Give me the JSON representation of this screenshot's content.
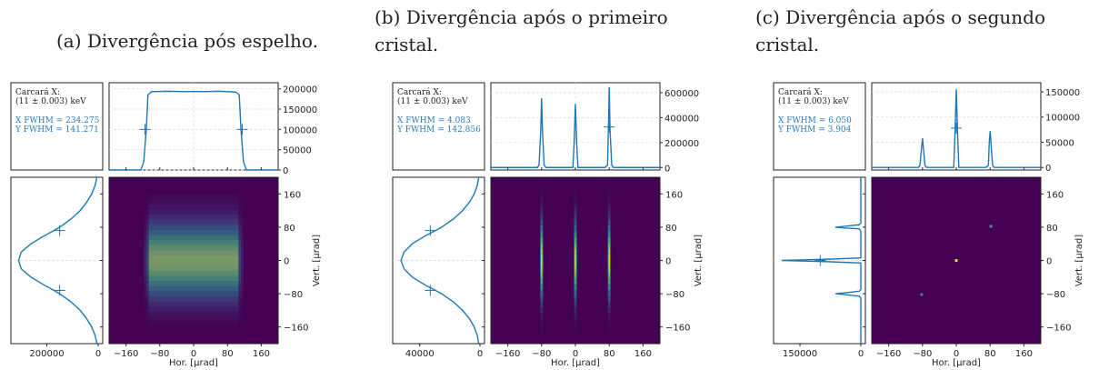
{
  "chart_data": [
    {
      "type": "heatmap",
      "caption": "(a) Divergência pós espelho.",
      "info": {
        "source": "Carcará X:",
        "energy": "(11 ± 0.003) keV",
        "xfwhm": "X FWHM = 234.275",
        "yfwhm": "Y FWHM = 141.271"
      },
      "xlabel": "Hor. [µrad]",
      "ylabel": "Vert. [µrad]",
      "xlim": [
        -200,
        200
      ],
      "ylim": [
        -200,
        200
      ],
      "xticks": [
        "−160",
        "−80",
        "0",
        "80",
        "160"
      ],
      "yticks": [
        "−160",
        "−80",
        "0",
        "80",
        "160"
      ],
      "top_hist": {
        "ylim": [
          0,
          215000
        ],
        "yticks": [
          "0",
          "50000",
          "100000",
          "150000",
          "200000"
        ],
        "x": [
          -200,
          -125,
          -118,
          -112,
          -108,
          -100,
          -60,
          -20,
          0,
          20,
          60,
          100,
          108,
          112,
          118,
          125,
          200
        ],
        "y": [
          0,
          0,
          20000,
          100000,
          185000,
          193000,
          194000,
          193000,
          193500,
          193000,
          194000,
          192000,
          185000,
          100000,
          20000,
          0,
          0
        ]
      },
      "left_hist": {
        "xlim": [
          0,
          340000
        ],
        "xticks": [
          "200000",
          "0"
        ],
        "y": [
          -200,
          -180,
          -160,
          -140,
          -120,
          -100,
          -80,
          -70,
          -60,
          -40,
          -20,
          0,
          20,
          40,
          60,
          70,
          80,
          100,
          120,
          140,
          160,
          180,
          200
        ],
        "x": [
          5000,
          12000,
          25000,
          45000,
          70000,
          105000,
          150000,
          178000,
          208000,
          262000,
          300000,
          310000,
          300000,
          262000,
          208000,
          178000,
          150000,
          105000,
          70000,
          45000,
          25000,
          12000,
          5000
        ]
      },
      "spots": [
        {
          "x": 0,
          "y": 0,
          "sx": 110,
          "sy": 58,
          "shape": "box"
        }
      ],
      "markers": {
        "top": [
          [
            -115,
            100000
          ],
          [
            115,
            100000
          ]
        ],
        "left": [
          [
            150000,
            72
          ],
          [
            150000,
            -72
          ]
        ]
      }
    },
    {
      "type": "heatmap",
      "caption": "(b) Divergência após o primeiro cristal.",
      "info": {
        "source": "Carcará X:",
        "energy": "(11 ± 0.003) keV",
        "xfwhm": "X FWHM = 4.083",
        "yfwhm": "Y FWHM = 142.856"
      },
      "xlabel": "Hor. [µrad]",
      "ylabel": "Vert. [µrad]",
      "xlim": [
        -200,
        200
      ],
      "ylim": [
        -200,
        200
      ],
      "xticks": [
        "−160",
        "−80",
        "0",
        "80",
        "160"
      ],
      "yticks": [
        "−160",
        "−80",
        "0",
        "80",
        "160"
      ],
      "top_hist": {
        "ylim": [
          -20000,
          680000
        ],
        "yticks": [
          "0",
          "200000",
          "400000",
          "600000"
        ],
        "x": [
          -200,
          -90,
          -86,
          -82,
          -80,
          -78,
          -74,
          -70,
          -6,
          -3,
          0,
          3,
          6,
          70,
          76,
          78,
          80,
          82,
          86,
          90,
          200
        ],
        "y": [
          0,
          0,
          20000,
          300000,
          555000,
          300000,
          20000,
          0,
          0,
          200000,
          510000,
          200000,
          0,
          0,
          20000,
          300000,
          645000,
          300000,
          20000,
          0,
          0
        ]
      },
      "left_hist": {
        "xlim": [
          0,
          58000
        ],
        "xticks": [
          "40000",
          "0"
        ],
        "y": [
          -200,
          -180,
          -160,
          -140,
          -120,
          -100,
          -80,
          -70,
          -60,
          -40,
          -20,
          0,
          20,
          40,
          60,
          70,
          80,
          100,
          120,
          140,
          160,
          180,
          200
        ],
        "x": [
          800,
          1800,
          3800,
          7000,
          11500,
          17500,
          25500,
          30500,
          36000,
          45000,
          50500,
          52500,
          50500,
          45000,
          36000,
          30500,
          25500,
          17500,
          11500,
          7000,
          3800,
          1800,
          800
        ]
      },
      "spots": [
        {
          "x": -80,
          "y": 0,
          "sx": 2.5,
          "sy": 60,
          "shape": "line"
        },
        {
          "x": 0,
          "y": 0,
          "sx": 2.5,
          "sy": 60,
          "shape": "line"
        },
        {
          "x": 80,
          "y": 0,
          "sx": 2.5,
          "sy": 60,
          "shape": "line"
        }
      ],
      "markers": {
        "top": [
          [
            80,
            325000
          ]
        ],
        "left": [
          [
            33000,
            72
          ],
          [
            33000,
            -72
          ]
        ]
      }
    },
    {
      "type": "heatmap",
      "caption": "(c) Divergência após o segundo cristal.",
      "info": {
        "source": "Carcará X:",
        "energy": "(11 ± 0.003) keV",
        "xfwhm": "X FWHM = 6.050",
        "yfwhm": "Y FWHM = 3.904"
      },
      "xlabel": "Hor. [µrad]",
      "ylabel": "Vert. [µrad]",
      "xlim": [
        -200,
        200
      ],
      "ylim": [
        -200,
        200
      ],
      "xticks": [
        "−160",
        "−80",
        "0",
        "80",
        "160"
      ],
      "yticks": [
        "−160",
        "−80",
        "0",
        "80",
        "160"
      ],
      "top_hist": {
        "ylim": [
          -5000,
          168000
        ],
        "yticks": [
          "0",
          "50000",
          "100000",
          "150000"
        ],
        "x": [
          -200,
          -90,
          -86,
          -82,
          -80,
          -78,
          -74,
          -70,
          -6,
          -3,
          0,
          3,
          6,
          70,
          76,
          78,
          80,
          82,
          86,
          90,
          200
        ],
        "y": [
          0,
          0,
          4000,
          40000,
          58000,
          40000,
          4000,
          0,
          0,
          70000,
          155000,
          70000,
          0,
          0,
          4000,
          50000,
          72000,
          50000,
          4000,
          0,
          0
        ]
      },
      "left_hist": {
        "xlim": [
          0,
          215000
        ],
        "xticks": [
          "150000",
          "0"
        ],
        "y": [
          -200,
          -90,
          -86,
          -82,
          -80,
          -78,
          -74,
          -70,
          -6,
          -3,
          0,
          3,
          6,
          70,
          76,
          78,
          80,
          82,
          86,
          90,
          200
        ],
        "x": [
          0,
          0,
          4000,
          40000,
          63000,
          40000,
          4000,
          0,
          0,
          80000,
          195000,
          80000,
          0,
          0,
          4000,
          40000,
          63000,
          40000,
          4000,
          0,
          0
        ]
      },
      "spots": [
        {
          "x": -82,
          "y": -82,
          "sx": 2,
          "sy": 2,
          "shape": "dot",
          "c": "#3a7ea0"
        },
        {
          "x": 0,
          "y": 0,
          "sx": 2.5,
          "sy": 2.5,
          "shape": "dot",
          "c": "#d8df2a"
        },
        {
          "x": 82,
          "y": 82,
          "sx": 2,
          "sy": 2,
          "shape": "dot",
          "c": "#3f9b88"
        }
      ],
      "markers": {
        "top": [
          [
            0,
            78000
          ]
        ],
        "left": [
          [
            100000,
            0
          ]
        ]
      }
    }
  ],
  "colors": {
    "line": "#1f77b4",
    "info_text": "#2a7ab8",
    "map_bg": "#440154"
  }
}
